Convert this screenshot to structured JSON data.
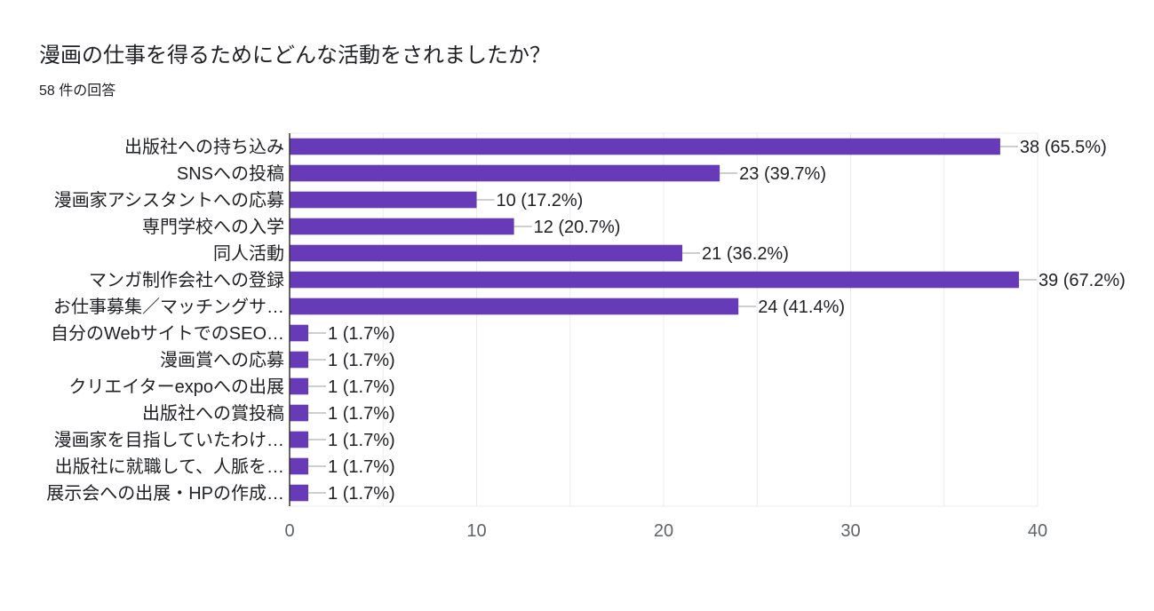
{
  "header": {
    "title": "漫画の仕事を得るためにどんな活動をされましたか？",
    "responses": "58 件の回答"
  },
  "chart_data": {
    "type": "bar",
    "orientation": "horizontal",
    "title": "漫画の仕事を得るためにどんな活動をされましたか？",
    "subtitle": "58 件の回答",
    "categories": [
      "出版社への持ち込み",
      "SNSへの投稿",
      "漫画家アシスタントへの応募",
      "専門学校への入学",
      "同人活動",
      "マンガ制作会社への登録",
      "お仕事募集／マッチングサ…",
      "自分のWebサイトでのSEO…",
      "漫画賞への応募",
      "クリエイターexpoへの出展",
      "出版社への賞投稿",
      "漫画家を目指していたわけ…",
      "出版社に就職して、人脈を…",
      "展示会への出展・HPの作成…"
    ],
    "values": [
      38,
      23,
      10,
      12,
      21,
      39,
      24,
      1,
      1,
      1,
      1,
      1,
      1,
      1
    ],
    "labels": [
      "38 (65.5%)",
      "23 (39.7%)",
      "10 (17.2%)",
      "12 (20.7%)",
      "21 (36.2%)",
      "39 (67.2%)",
      "24 (41.4%)",
      "1 (1.7%)",
      "1 (1.7%)",
      "1 (1.7%)",
      "1 (1.7%)",
      "1 (1.7%)",
      "1 (1.7%)",
      "1 (1.7%)"
    ],
    "xlim": [
      0,
      40
    ],
    "xticks": [
      0,
      10,
      20,
      30,
      40
    ],
    "grid": true,
    "colors": {
      "bar": "#673ab7",
      "grid": "#ebebeb",
      "axis": "#333333",
      "leader": "#9e9e9e"
    }
  }
}
